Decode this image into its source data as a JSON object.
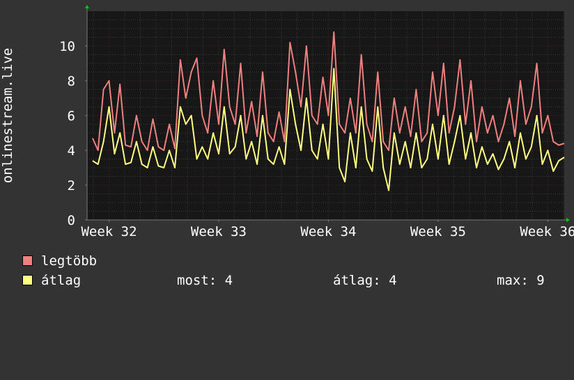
{
  "chart_data": {
    "type": "line",
    "ylabel": "onlinestream.live",
    "ylim": [
      0,
      12
    ],
    "yticks": [
      0,
      2,
      4,
      6,
      8,
      10
    ],
    "x_tick_labels": [
      "Week 32",
      "Week 33",
      "Week 34",
      "Week 35",
      "Week 36"
    ],
    "x_range_weeks": [
      31.8,
      36.15
    ],
    "grid": true,
    "legend_placement": "bottom-left",
    "colors": {
      "background": "#333333",
      "plot_background": "#171717",
      "minor_grid": "#3a3a3a",
      "major_grid": "#4d1f1f",
      "axis": "#7a7a7a",
      "arrow": "#00cc00"
    },
    "series": [
      {
        "name": "legtöbb",
        "color": "#f08080",
        "points": [
          [
            31.85,
            4.7
          ],
          [
            31.9,
            4.0
          ],
          [
            31.95,
            7.5
          ],
          [
            32.0,
            8.0
          ],
          [
            32.05,
            5.0
          ],
          [
            32.1,
            7.8
          ],
          [
            32.15,
            4.3
          ],
          [
            32.2,
            4.2
          ],
          [
            32.25,
            6.0
          ],
          [
            32.3,
            4.5
          ],
          [
            32.35,
            4.0
          ],
          [
            32.4,
            5.8
          ],
          [
            32.45,
            4.2
          ],
          [
            32.5,
            4.0
          ],
          [
            32.55,
            5.5
          ],
          [
            32.6,
            4.1
          ],
          [
            32.65,
            9.2
          ],
          [
            32.7,
            7.0
          ],
          [
            32.75,
            8.5
          ],
          [
            32.8,
            9.3
          ],
          [
            32.85,
            6.0
          ],
          [
            32.9,
            5.0
          ],
          [
            32.95,
            8.0
          ],
          [
            33.0,
            5.5
          ],
          [
            33.05,
            9.8
          ],
          [
            33.1,
            6.5
          ],
          [
            33.15,
            5.5
          ],
          [
            33.2,
            9.0
          ],
          [
            33.25,
            5.0
          ],
          [
            33.3,
            6.8
          ],
          [
            33.35,
            4.8
          ],
          [
            33.4,
            8.5
          ],
          [
            33.45,
            5.0
          ],
          [
            33.5,
            4.5
          ],
          [
            33.55,
            6.2
          ],
          [
            33.6,
            4.5
          ],
          [
            33.65,
            10.2
          ],
          [
            33.7,
            8.5
          ],
          [
            33.75,
            6.5
          ],
          [
            33.8,
            10.0
          ],
          [
            33.85,
            6.0
          ],
          [
            33.9,
            5.5
          ],
          [
            33.95,
            8.2
          ],
          [
            34.0,
            6.0
          ],
          [
            34.05,
            10.8
          ],
          [
            34.1,
            5.5
          ],
          [
            34.15,
            5.0
          ],
          [
            34.2,
            7.0
          ],
          [
            34.25,
            5.0
          ],
          [
            34.3,
            9.5
          ],
          [
            34.35,
            5.5
          ],
          [
            34.4,
            4.5
          ],
          [
            34.45,
            8.5
          ],
          [
            34.5,
            4.5
          ],
          [
            34.55,
            4.0
          ],
          [
            34.6,
            7.0
          ],
          [
            34.65,
            5.0
          ],
          [
            34.7,
            6.5
          ],
          [
            34.75,
            4.8
          ],
          [
            34.8,
            7.5
          ],
          [
            34.85,
            4.5
          ],
          [
            34.9,
            5.0
          ],
          [
            34.95,
            8.5
          ],
          [
            35.0,
            6.0
          ],
          [
            35.05,
            9.0
          ],
          [
            35.1,
            5.0
          ],
          [
            35.15,
            6.5
          ],
          [
            35.2,
            9.2
          ],
          [
            35.25,
            5.5
          ],
          [
            35.3,
            8.0
          ],
          [
            35.35,
            4.5
          ],
          [
            35.4,
            6.5
          ],
          [
            35.45,
            5.0
          ],
          [
            35.5,
            6.0
          ],
          [
            35.55,
            4.5
          ],
          [
            35.6,
            5.5
          ],
          [
            35.65,
            7.0
          ],
          [
            35.7,
            4.8
          ],
          [
            35.75,
            8.0
          ],
          [
            35.8,
            5.5
          ],
          [
            35.85,
            6.5
          ],
          [
            35.9,
            9.0
          ],
          [
            35.95,
            5.0
          ],
          [
            36.0,
            6.0
          ],
          [
            36.05,
            4.5
          ],
          [
            36.1,
            4.3
          ],
          [
            36.15,
            4.4
          ]
        ]
      },
      {
        "name": "átlag",
        "color": "#ffff80",
        "points": [
          [
            31.85,
            3.4
          ],
          [
            31.9,
            3.2
          ],
          [
            31.95,
            4.5
          ],
          [
            32.0,
            6.5
          ],
          [
            32.05,
            3.8
          ],
          [
            32.1,
            5.0
          ],
          [
            32.15,
            3.2
          ],
          [
            32.2,
            3.3
          ],
          [
            32.25,
            4.5
          ],
          [
            32.3,
            3.2
          ],
          [
            32.35,
            3.0
          ],
          [
            32.4,
            4.2
          ],
          [
            32.45,
            3.1
          ],
          [
            32.5,
            3.0
          ],
          [
            32.55,
            4.0
          ],
          [
            32.6,
            3.0
          ],
          [
            32.65,
            6.5
          ],
          [
            32.7,
            5.5
          ],
          [
            32.75,
            6.0
          ],
          [
            32.8,
            3.5
          ],
          [
            32.85,
            4.2
          ],
          [
            32.9,
            3.5
          ],
          [
            32.95,
            5.0
          ],
          [
            33.0,
            3.8
          ],
          [
            33.05,
            6.5
          ],
          [
            33.1,
            3.8
          ],
          [
            33.15,
            4.2
          ],
          [
            33.2,
            6.0
          ],
          [
            33.25,
            3.5
          ],
          [
            33.3,
            4.5
          ],
          [
            33.35,
            3.2
          ],
          [
            33.4,
            6.0
          ],
          [
            33.45,
            3.5
          ],
          [
            33.5,
            3.2
          ],
          [
            33.55,
            4.2
          ],
          [
            33.6,
            3.2
          ],
          [
            33.65,
            7.5
          ],
          [
            33.7,
            5.5
          ],
          [
            33.75,
            4.0
          ],
          [
            33.8,
            7.0
          ],
          [
            33.85,
            4.0
          ],
          [
            33.9,
            3.5
          ],
          [
            33.95,
            5.5
          ],
          [
            34.0,
            3.5
          ],
          [
            34.05,
            8.7
          ],
          [
            34.1,
            3.0
          ],
          [
            34.15,
            2.2
          ],
          [
            34.2,
            5.0
          ],
          [
            34.25,
            3.0
          ],
          [
            34.3,
            6.5
          ],
          [
            34.35,
            3.5
          ],
          [
            34.4,
            2.8
          ],
          [
            34.45,
            6.5
          ],
          [
            34.5,
            3.0
          ],
          [
            34.55,
            1.7
          ],
          [
            34.6,
            5.0
          ],
          [
            34.65,
            3.2
          ],
          [
            34.7,
            4.5
          ],
          [
            34.75,
            3.0
          ],
          [
            34.8,
            5.0
          ],
          [
            34.85,
            3.0
          ],
          [
            34.9,
            3.5
          ],
          [
            34.95,
            5.5
          ],
          [
            35.0,
            3.5
          ],
          [
            35.05,
            6.0
          ],
          [
            35.1,
            3.2
          ],
          [
            35.15,
            4.5
          ],
          [
            35.2,
            6.0
          ],
          [
            35.25,
            3.5
          ],
          [
            35.3,
            5.0
          ],
          [
            35.35,
            3.0
          ],
          [
            35.4,
            4.2
          ],
          [
            35.45,
            3.2
          ],
          [
            35.5,
            3.8
          ],
          [
            35.55,
            2.9
          ],
          [
            35.6,
            3.5
          ],
          [
            35.65,
            4.5
          ],
          [
            35.7,
            3.0
          ],
          [
            35.75,
            5.0
          ],
          [
            35.8,
            3.5
          ],
          [
            35.85,
            4.2
          ],
          [
            35.9,
            6.0
          ],
          [
            35.95,
            3.2
          ],
          [
            36.0,
            4.0
          ],
          [
            36.05,
            2.8
          ],
          [
            36.1,
            3.4
          ],
          [
            36.15,
            3.6
          ]
        ]
      }
    ]
  },
  "legend": {
    "max_label": "legtöbb",
    "avg_label": "átlag",
    "stats": {
      "current": "most: 4",
      "average": "átlag: 4",
      "maximum": "max: 9"
    }
  }
}
